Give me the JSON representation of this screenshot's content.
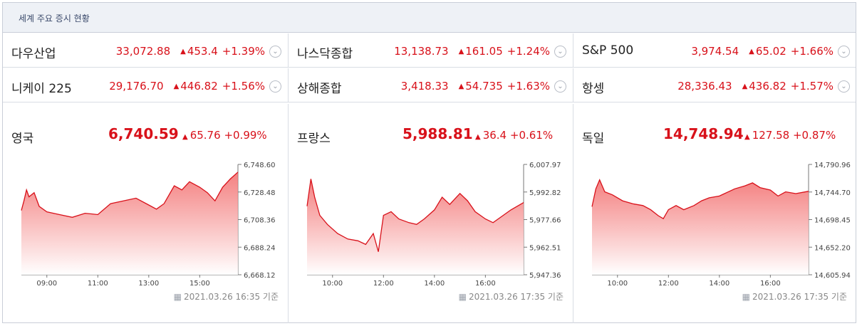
{
  "title": "세계 주요 증시 현황",
  "rows": [
    [
      {
        "name": "다우산업",
        "value": "33,072.88",
        "change": "453.4",
        "percent": "+1.39%"
      },
      {
        "name": "나스닥종합",
        "value": "13,138.73",
        "change": "161.05",
        "percent": "+1.24%"
      },
      {
        "name": "S&P 500",
        "value": "3,974.54",
        "change": "65.02",
        "percent": "+1.66%"
      }
    ],
    [
      {
        "name": "니케이 225",
        "value": "29,176.70",
        "change": "446.82",
        "percent": "+1.56%"
      },
      {
        "name": "상해종합",
        "value": "3,418.33",
        "change": "54.735",
        "percent": "+1.63%"
      },
      {
        "name": "항셍",
        "value": "28,336.43",
        "change": "436.82",
        "percent": "+1.57%"
      }
    ]
  ],
  "panels": [
    {
      "name": "영국",
      "value": "6,740.59",
      "change": "65.76",
      "percent": "+0.99%",
      "timestamp": "2021.03.26 16:35 기준"
    },
    {
      "name": "프랑스",
      "value": "5,988.81",
      "change": "36.4",
      "percent": "+0.61%",
      "timestamp": "2021.03.26 17:35 기준"
    },
    {
      "name": "독일",
      "value": "14,748.94",
      "change": "127.58",
      "percent": "+0.87%",
      "timestamp": "2021.03.26 17:35 기준"
    }
  ],
  "colors": {
    "up": "#d8111a",
    "fill_top": "#f26b6b",
    "header_bg": "#eef1f6"
  },
  "icons": {
    "dropdown": "chevron-down-circle-icon",
    "triangle": "up-triangle-icon",
    "calendar": "calendar-icon"
  },
  "chart_data": [
    {
      "type": "area",
      "yticks": [
        "6,748.60",
        "6,728.48",
        "6,708.36",
        "6,688.24",
        "6,668.12"
      ],
      "ylim": [
        6668.12,
        6748.6
      ],
      "xticks": [
        "09:00",
        "11:00",
        "13:00",
        "15:00"
      ],
      "xtick_hours": [
        9,
        11,
        13,
        15
      ],
      "x_start_hour": 8.0,
      "x_end_hour": 16.5,
      "points": [
        [
          8.0,
          6715
        ],
        [
          8.1,
          6722
        ],
        [
          8.2,
          6730
        ],
        [
          8.3,
          6725
        ],
        [
          8.5,
          6728
        ],
        [
          8.7,
          6718
        ],
        [
          9.0,
          6714
        ],
        [
          9.5,
          6712
        ],
        [
          10.0,
          6710
        ],
        [
          10.5,
          6713
        ],
        [
          11.0,
          6712
        ],
        [
          11.5,
          6720
        ],
        [
          12.0,
          6722
        ],
        [
          12.5,
          6724
        ],
        [
          13.0,
          6719
        ],
        [
          13.3,
          6716
        ],
        [
          13.6,
          6720
        ],
        [
          14.0,
          6733
        ],
        [
          14.3,
          6730
        ],
        [
          14.6,
          6736
        ],
        [
          15.0,
          6732
        ],
        [
          15.3,
          6728
        ],
        [
          15.6,
          6722
        ],
        [
          15.9,
          6732
        ],
        [
          16.2,
          6738
        ],
        [
          16.5,
          6743
        ]
      ]
    },
    {
      "type": "area",
      "yticks": [
        "6,007.97",
        "5,992.82",
        "5,977.66",
        "5,962.51",
        "5,947.36"
      ],
      "ylim": [
        5947.36,
        6007.97
      ],
      "xticks": [
        "10:00",
        "12:00",
        "14:00",
        "16:00"
      ],
      "xtick_hours": [
        10,
        12,
        14,
        16
      ],
      "x_start_hour": 9.0,
      "x_end_hour": 17.5,
      "points": [
        [
          9.0,
          5985
        ],
        [
          9.15,
          6000
        ],
        [
          9.3,
          5990
        ],
        [
          9.5,
          5980
        ],
        [
          9.8,
          5975
        ],
        [
          10.2,
          5970
        ],
        [
          10.6,
          5967
        ],
        [
          11.0,
          5966
        ],
        [
          11.3,
          5964
        ],
        [
          11.6,
          5970
        ],
        [
          11.8,
          5960
        ],
        [
          12.0,
          5980
        ],
        [
          12.3,
          5982
        ],
        [
          12.6,
          5978
        ],
        [
          13.0,
          5976
        ],
        [
          13.3,
          5975
        ],
        [
          13.6,
          5978
        ],
        [
          14.0,
          5983
        ],
        [
          14.3,
          5990
        ],
        [
          14.6,
          5986
        ],
        [
          15.0,
          5992
        ],
        [
          15.3,
          5988
        ],
        [
          15.6,
          5982
        ],
        [
          16.0,
          5978
        ],
        [
          16.3,
          5976
        ],
        [
          16.6,
          5979
        ],
        [
          17.0,
          5983
        ],
        [
          17.5,
          5987
        ]
      ]
    },
    {
      "type": "area",
      "yticks": [
        "14,790.96",
        "14,744.70",
        "14,698.45",
        "14,652.20",
        "14,605.94"
      ],
      "ylim": [
        14605.94,
        14790.96
      ],
      "xticks": [
        "10:00",
        "12:00",
        "14:00",
        "16:00"
      ],
      "xtick_hours": [
        10,
        12,
        14,
        16
      ],
      "x_start_hour": 9.0,
      "x_end_hour": 17.5,
      "points": [
        [
          9.0,
          14720
        ],
        [
          9.15,
          14750
        ],
        [
          9.3,
          14765
        ],
        [
          9.5,
          14745
        ],
        [
          9.8,
          14740
        ],
        [
          10.2,
          14730
        ],
        [
          10.6,
          14725
        ],
        [
          11.0,
          14722
        ],
        [
          11.3,
          14715
        ],
        [
          11.6,
          14705
        ],
        [
          11.8,
          14700
        ],
        [
          12.0,
          14715
        ],
        [
          12.3,
          14722
        ],
        [
          12.6,
          14715
        ],
        [
          13.0,
          14722
        ],
        [
          13.3,
          14730
        ],
        [
          13.6,
          14735
        ],
        [
          14.0,
          14738
        ],
        [
          14.3,
          14744
        ],
        [
          14.6,
          14750
        ],
        [
          15.0,
          14755
        ],
        [
          15.3,
          14760
        ],
        [
          15.6,
          14752
        ],
        [
          16.0,
          14748
        ],
        [
          16.3,
          14738
        ],
        [
          16.6,
          14745
        ],
        [
          17.0,
          14742
        ],
        [
          17.5,
          14746
        ]
      ]
    }
  ]
}
